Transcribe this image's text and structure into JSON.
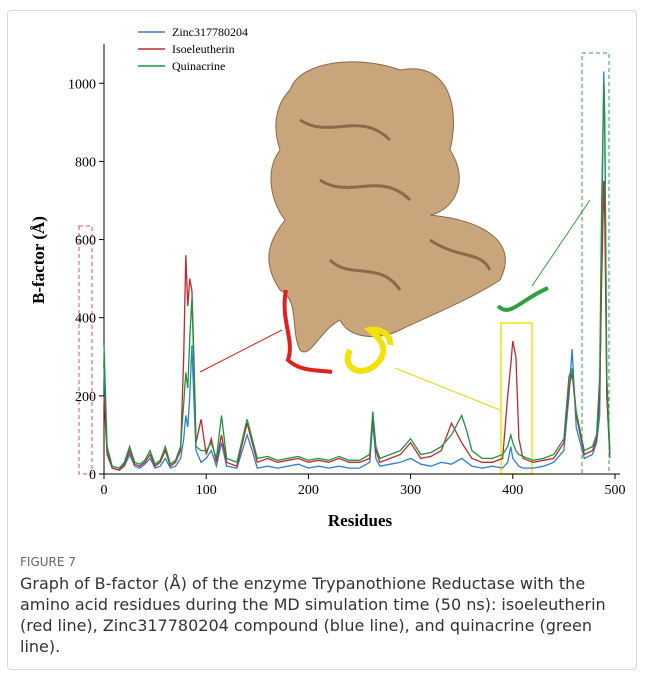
{
  "chart_data": {
    "type": "line",
    "x": [
      0,
      3,
      8,
      15,
      20,
      25,
      30,
      35,
      40,
      45,
      50,
      55,
      60,
      65,
      70,
      75,
      78,
      80,
      82,
      84,
      86,
      88,
      90,
      95,
      100,
      105,
      110,
      115,
      120,
      130,
      140,
      145,
      150,
      160,
      170,
      180,
      190,
      200,
      210,
      220,
      230,
      240,
      250,
      260,
      263,
      266,
      270,
      280,
      290,
      300,
      310,
      320,
      330,
      340,
      350,
      355,
      360,
      370,
      380,
      390,
      395,
      398,
      400,
      403,
      406,
      410,
      420,
      430,
      440,
      450,
      455,
      458,
      462,
      470,
      478,
      482,
      485,
      487,
      489,
      490,
      492,
      495
    ],
    "series": [
      {
        "name": "Zinc317780204",
        "color": "#2f7fd1",
        "values": [
          270,
          60,
          15,
          10,
          20,
          50,
          20,
          15,
          25,
          40,
          15,
          20,
          40,
          15,
          20,
          40,
          90,
          150,
          120,
          200,
          330,
          190,
          60,
          30,
          40,
          60,
          20,
          80,
          20,
          15,
          100,
          60,
          15,
          20,
          15,
          20,
          25,
          15,
          20,
          15,
          20,
          15,
          15,
          30,
          130,
          40,
          20,
          25,
          30,
          40,
          25,
          20,
          30,
          25,
          40,
          30,
          20,
          15,
          20,
          15,
          30,
          70,
          40,
          30,
          20,
          15,
          15,
          20,
          30,
          60,
          200,
          320,
          120,
          40,
          50,
          80,
          150,
          600,
          1030,
          900,
          200,
          40
        ]
      },
      {
        "name": "Isoeleutherin",
        "color": "#c0292e",
        "values": [
          200,
          50,
          15,
          10,
          25,
          60,
          25,
          20,
          30,
          50,
          20,
          30,
          60,
          20,
          30,
          60,
          300,
          560,
          430,
          500,
          470,
          300,
          80,
          140,
          50,
          90,
          30,
          100,
          30,
          20,
          130,
          80,
          30,
          40,
          30,
          35,
          40,
          30,
          35,
          30,
          40,
          30,
          30,
          40,
          150,
          60,
          30,
          40,
          50,
          80,
          40,
          45,
          60,
          130,
          80,
          60,
          40,
          30,
          30,
          40,
          200,
          280,
          340,
          300,
          90,
          40,
          30,
          35,
          40,
          80,
          220,
          260,
          150,
          50,
          60,
          90,
          200,
          500,
          750,
          650,
          200,
          50
        ]
      },
      {
        "name": "Quinacrine",
        "color": "#1a9641",
        "values": [
          330,
          70,
          20,
          15,
          30,
          70,
          30,
          25,
          35,
          60,
          25,
          35,
          70,
          25,
          35,
          70,
          180,
          260,
          220,
          350,
          450,
          280,
          70,
          60,
          60,
          80,
          40,
          150,
          40,
          30,
          140,
          90,
          40,
          45,
          35,
          40,
          45,
          35,
          40,
          35,
          45,
          35,
          35,
          50,
          160,
          70,
          40,
          50,
          60,
          90,
          50,
          55,
          70,
          100,
          150,
          110,
          60,
          40,
          40,
          50,
          70,
          100,
          80,
          60,
          50,
          45,
          35,
          40,
          50,
          90,
          250,
          270,
          160,
          60,
          70,
          100,
          250,
          700,
          1000,
          880,
          250,
          60
        ]
      }
    ],
    "xlabel": "Residues",
    "ylabel": "B-factor (Å)",
    "xlim": [
      0,
      500
    ],
    "ylim": [
      0,
      1080
    ],
    "xticks": [
      0,
      100,
      200,
      300,
      400,
      500
    ],
    "yticks": [
      0,
      200,
      400,
      600,
      800,
      1000
    ],
    "legend": "upper left"
  },
  "figure": {
    "label": "FIGURE 7",
    "caption": "Graph of B-factor (Å) of the enzyme Trypanothione Reductase with the amino acid residues during the MD simulation time (50 ns): isoeleutherin (red line), Zinc317780204 compound (blue line), and quinacrine (green line)."
  }
}
